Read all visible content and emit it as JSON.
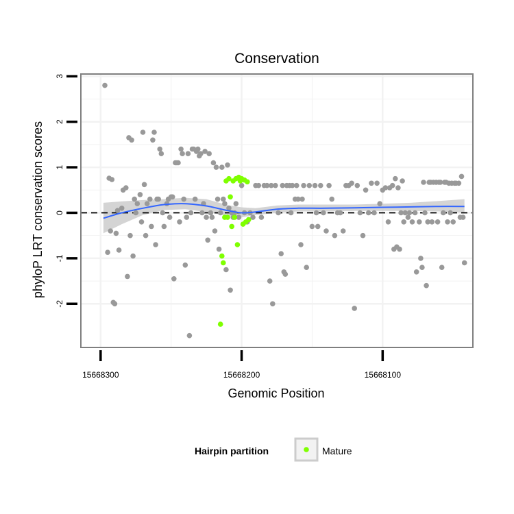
{
  "chart_data": {
    "type": "scatter",
    "title": "Conservation",
    "xlabel": "Genomic Position",
    "ylabel": "phyloP LRT conservation scores",
    "x_reversed": true,
    "xlim": [
      15668314,
      15668036
    ],
    "ylim": [
      -2.96,
      3.05
    ],
    "x_ticks": [
      15668300,
      15668200,
      15668100
    ],
    "x_tick_labels": [
      "15668300",
      "15668200",
      "15668100"
    ],
    "y_ticks": [
      -2,
      -1,
      0,
      1,
      2,
      3
    ],
    "y_tick_labels": [
      "-2",
      "-1",
      "0",
      "1",
      "2",
      "3"
    ],
    "grid": true,
    "reference_line_y": 0,
    "legend": {
      "title": "Hairpin partition",
      "entries": [
        "Mature"
      ],
      "placement": "bottom"
    },
    "colors": {
      "points": "#999999",
      "mature": "#7fff00",
      "smooth": "#3366ff",
      "ribbon": "#cccccc",
      "panel_border": "#7f7f7f",
      "grid": "#f2f2f2"
    },
    "series": [
      {
        "name": "",
        "color": "#999999",
        "points": [
          [
            15668297,
            2.8
          ],
          [
            15668295,
            -0.87
          ],
          [
            15668294,
            0.76
          ],
          [
            15668293,
            -0.4
          ],
          [
            15668292,
            0.73
          ],
          [
            15668291,
            -1.97
          ],
          [
            15668290,
            -2.0
          ],
          [
            15668289,
            -0.45
          ],
          [
            15668288,
            0.05
          ],
          [
            15668287,
            -0.82
          ],
          [
            15668285,
            0.1
          ],
          [
            15668284,
            0.5
          ],
          [
            15668282,
            0.55
          ],
          [
            15668281,
            -1.4
          ],
          [
            15668280,
            1.65
          ],
          [
            15668279,
            -0.5
          ],
          [
            15668278,
            1.6
          ],
          [
            15668277,
            -0.95
          ],
          [
            15668276,
            0.3
          ],
          [
            15668275,
            0.0
          ],
          [
            15668274,
            0.2
          ],
          [
            15668272,
            0.4
          ],
          [
            15668271,
            -0.2
          ],
          [
            15668270,
            1.77
          ],
          [
            15668269,
            0.62
          ],
          [
            15668268,
            -0.5
          ],
          [
            15668267,
            0.2
          ],
          [
            15668265,
            0.3
          ],
          [
            15668264,
            -0.3
          ],
          [
            15668263,
            1.6
          ],
          [
            15668262,
            1.77
          ],
          [
            15668261,
            -0.7
          ],
          [
            15668260,
            0.3
          ],
          [
            15668259,
            0.3
          ],
          [
            15668258,
            1.4
          ],
          [
            15668257,
            1.3
          ],
          [
            15668256,
            0.0
          ],
          [
            15668255,
            -0.3
          ],
          [
            15668253,
            0.2
          ],
          [
            15668252,
            0.3
          ],
          [
            15668251,
            -0.1
          ],
          [
            15668250,
            0.35
          ],
          [
            15668249,
            0.35
          ],
          [
            15668248,
            -1.45
          ],
          [
            15668247,
            1.1
          ],
          [
            15668246,
            1.1
          ],
          [
            15668245,
            1.1
          ],
          [
            15668244,
            -0.2
          ],
          [
            15668243,
            1.4
          ],
          [
            15668242,
            1.3
          ],
          [
            15668241,
            0.3
          ],
          [
            15668240,
            -1.15
          ],
          [
            15668239,
            -0.1
          ],
          [
            15668238,
            1.3
          ],
          [
            15668237,
            -2.7
          ],
          [
            15668236,
            0.0
          ],
          [
            15668235,
            1.4
          ],
          [
            15668234,
            1.4
          ],
          [
            15668233,
            0.3
          ],
          [
            15668232,
            1.35
          ],
          [
            15668231,
            1.4
          ],
          [
            15668230,
            1.25
          ],
          [
            15668229,
            1.3
          ],
          [
            15668228,
            0.0
          ],
          [
            15668227,
            0.2
          ],
          [
            15668226,
            1.35
          ],
          [
            15668225,
            -0.1
          ],
          [
            15668224,
            -0.6
          ],
          [
            15668223,
            1.3
          ],
          [
            15668222,
            0.0
          ],
          [
            15668221,
            -0.1
          ],
          [
            15668220,
            1.1
          ],
          [
            15668219,
            -0.4
          ],
          [
            15668218,
            1.0
          ],
          [
            15668217,
            0.3
          ],
          [
            15668216,
            -0.8
          ],
          [
            15668215,
            0.0
          ],
          [
            15668214,
            1.0
          ],
          [
            15668213,
            0.3
          ],
          [
            15668212,
            0.2
          ],
          [
            15668211,
            -1.25
          ],
          [
            15668210,
            1.05
          ],
          [
            15668209,
            0.1
          ],
          [
            15668208,
            -1.7
          ],
          [
            15668207,
            0.0
          ],
          [
            15668206,
            -0.1
          ],
          [
            15668205,
            0.0
          ],
          [
            15668204,
            0.2
          ],
          [
            15668202,
            -0.1
          ],
          [
            15668200,
            0.6
          ],
          [
            15668198,
            0.0
          ],
          [
            15668196,
            -0.2
          ],
          [
            15668194,
            0.0
          ],
          [
            15668192,
            -0.1
          ],
          [
            15668190,
            0.6
          ],
          [
            15668188,
            0.6
          ],
          [
            15668186,
            -0.1
          ],
          [
            15668184,
            0.6
          ],
          [
            15668182,
            0.6
          ],
          [
            15668180,
            -1.5
          ],
          [
            15668179,
            0.6
          ],
          [
            15668178,
            -2.0
          ],
          [
            15668176,
            0.6
          ],
          [
            15668174,
            0.0
          ],
          [
            15668172,
            -0.9
          ],
          [
            15668171,
            0.6
          ],
          [
            15668170,
            -1.3
          ],
          [
            15668169,
            -1.35
          ],
          [
            15668168,
            0.6
          ],
          [
            15668166,
            0.6
          ],
          [
            15668165,
            0.0
          ],
          [
            15668164,
            0.6
          ],
          [
            15668162,
            0.3
          ],
          [
            15668161,
            0.6
          ],
          [
            15668160,
            0.3
          ],
          [
            15668158,
            -0.7
          ],
          [
            15668157,
            0.3
          ],
          [
            15668156,
            0.6
          ],
          [
            15668154,
            -1.2
          ],
          [
            15668152,
            0.6
          ],
          [
            15668150,
            -0.3
          ],
          [
            15668148,
            0.6
          ],
          [
            15668147,
            0.0
          ],
          [
            15668146,
            -0.3
          ],
          [
            15668144,
            0.6
          ],
          [
            15668142,
            0.0
          ],
          [
            15668140,
            -0.4
          ],
          [
            15668138,
            0.6
          ],
          [
            15668136,
            0.3
          ],
          [
            15668134,
            -0.5
          ],
          [
            15668132,
            0.0
          ],
          [
            15668130,
            0.0
          ],
          [
            15668128,
            -0.4
          ],
          [
            15668126,
            0.6
          ],
          [
            15668124,
            0.6
          ],
          [
            15668122,
            0.65
          ],
          [
            15668120,
            -2.1
          ],
          [
            15668118,
            0.6
          ],
          [
            15668116,
            0.0
          ],
          [
            15668114,
            -0.5
          ],
          [
            15668112,
            0.5
          ],
          [
            15668110,
            0.0
          ],
          [
            15668108,
            0.65
          ],
          [
            15668106,
            0.0
          ],
          [
            15668104,
            0.65
          ],
          [
            15668102,
            0.2
          ],
          [
            15668100,
            0.5
          ],
          [
            15668098,
            0.55
          ],
          [
            15668096,
            -0.2
          ],
          [
            15668095,
            0.55
          ],
          [
            15668093,
            0.6
          ],
          [
            15668092,
            -0.8
          ],
          [
            15668091,
            0.75
          ],
          [
            15668090,
            -0.75
          ],
          [
            15668089,
            0.55
          ],
          [
            15668088,
            -0.8
          ],
          [
            15668087,
            0.0
          ],
          [
            15668086,
            0.7
          ],
          [
            15668085,
            -0.2
          ],
          [
            15668084,
            0.0
          ],
          [
            15668082,
            -0.1
          ],
          [
            15668081,
            0.0
          ],
          [
            15668079,
            -0.2
          ],
          [
            15668077,
            0.0
          ],
          [
            15668076,
            -1.3
          ],
          [
            15668074,
            -0.2
          ],
          [
            15668073,
            -1.0
          ],
          [
            15668072,
            -1.2
          ],
          [
            15668071,
            0.67
          ],
          [
            15668070,
            0.0
          ],
          [
            15668069,
            -1.6
          ],
          [
            15668068,
            -0.2
          ],
          [
            15668067,
            0.67
          ],
          [
            15668066,
            0.67
          ],
          [
            15668065,
            -0.2
          ],
          [
            15668064,
            0.67
          ],
          [
            15668062,
            0.67
          ],
          [
            15668061,
            -0.2
          ],
          [
            15668060,
            0.67
          ],
          [
            15668059,
            0.67
          ],
          [
            15668058,
            -1.2
          ],
          [
            15668057,
            0.0
          ],
          [
            15668056,
            0.67
          ],
          [
            15668055,
            0.67
          ],
          [
            15668054,
            -0.2
          ],
          [
            15668053,
            0.65
          ],
          [
            15668052,
            0.0
          ],
          [
            15668051,
            0.65
          ],
          [
            15668050,
            -0.2
          ],
          [
            15668049,
            0.65
          ],
          [
            15668048,
            0.65
          ],
          [
            15668046,
            0.65
          ],
          [
            15668045,
            -0.1
          ],
          [
            15668044,
            0.8
          ],
          [
            15668043,
            -0.1
          ],
          [
            15668042,
            -1.1
          ]
        ]
      },
      {
        "name": "Mature",
        "color": "#7fff00",
        "points": [
          [
            15668215,
            -2.45
          ],
          [
            15668214,
            -0.95
          ],
          [
            15668213,
            -1.1
          ],
          [
            15668212,
            -0.1
          ],
          [
            15668211,
            0.7
          ],
          [
            15668210,
            -0.1
          ],
          [
            15668209,
            0.75
          ],
          [
            15668208,
            0.35
          ],
          [
            15668207,
            -0.3
          ],
          [
            15668206,
            0.7
          ],
          [
            15668205,
            -0.1
          ],
          [
            15668204,
            0.75
          ],
          [
            15668203,
            -0.7
          ],
          [
            15668202,
            0.78
          ],
          [
            15668201,
            0.7
          ],
          [
            15668200,
            0.75
          ],
          [
            15668199,
            -0.25
          ],
          [
            15668198,
            0.72
          ],
          [
            15668197,
            -0.2
          ],
          [
            15668196,
            0.68
          ],
          [
            15668195,
            -0.15
          ]
        ]
      }
    ],
    "smooth": {
      "name": "",
      "color": "#3366ff",
      "x": [
        15668298,
        15668285,
        15668270,
        15668255,
        15668240,
        15668225,
        15668210,
        15668200,
        15668190,
        15668175,
        15668160,
        15668140,
        15668120,
        15668100,
        15668080,
        15668060,
        15668042
      ],
      "y": [
        -0.12,
        0.0,
        0.1,
        0.18,
        0.2,
        0.15,
        0.05,
        0.0,
        0.02,
        0.08,
        0.1,
        0.1,
        0.11,
        0.12,
        0.13,
        0.14,
        0.14
      ],
      "lower": [
        -0.45,
        -0.25,
        -0.05,
        0.06,
        0.08,
        0.02,
        -0.07,
        -0.1,
        -0.05,
        0.0,
        0.03,
        0.03,
        0.04,
        0.04,
        0.04,
        0.03,
        0.0
      ],
      "upper": [
        0.22,
        0.25,
        0.28,
        0.3,
        0.33,
        0.3,
        0.17,
        0.12,
        0.1,
        0.16,
        0.18,
        0.18,
        0.18,
        0.2,
        0.22,
        0.26,
        0.3
      ]
    }
  }
}
